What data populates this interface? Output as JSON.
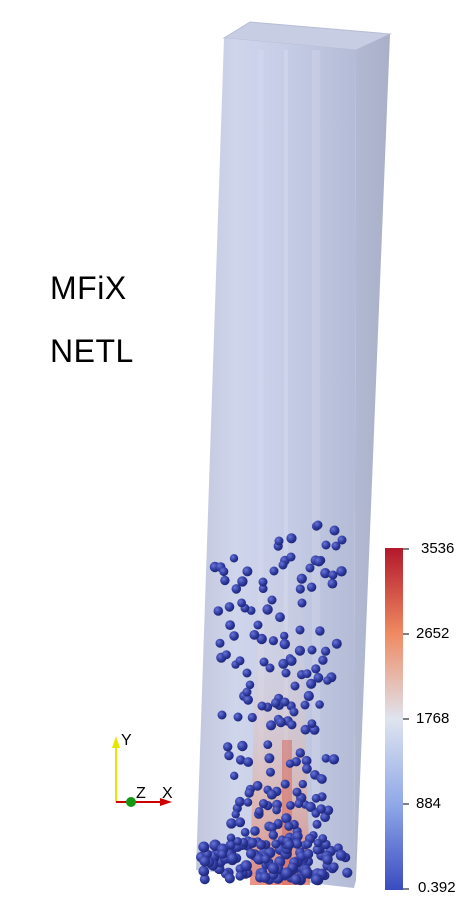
{
  "overlay": {
    "title_line1": "MFiX",
    "title_line2": "NETL"
  },
  "colorbar": {
    "ticks": [
      "3536",
      "2652",
      "1768",
      "884",
      "0.392"
    ],
    "colors": {
      "top": "#b2182b",
      "upper": "#ef8a62",
      "middle": "#dfe4ef",
      "lower": "#8fa8e8",
      "bottom": "#3a4cc0"
    }
  },
  "axes": {
    "y": "Y",
    "z": "Z",
    "x": "X",
    "colors": {
      "y": "#e6e600",
      "x": "#cc0000",
      "z": "#119911"
    }
  },
  "scene": {
    "box_color": "#b9c3dc",
    "particle_color": "#2f3aa0"
  }
}
